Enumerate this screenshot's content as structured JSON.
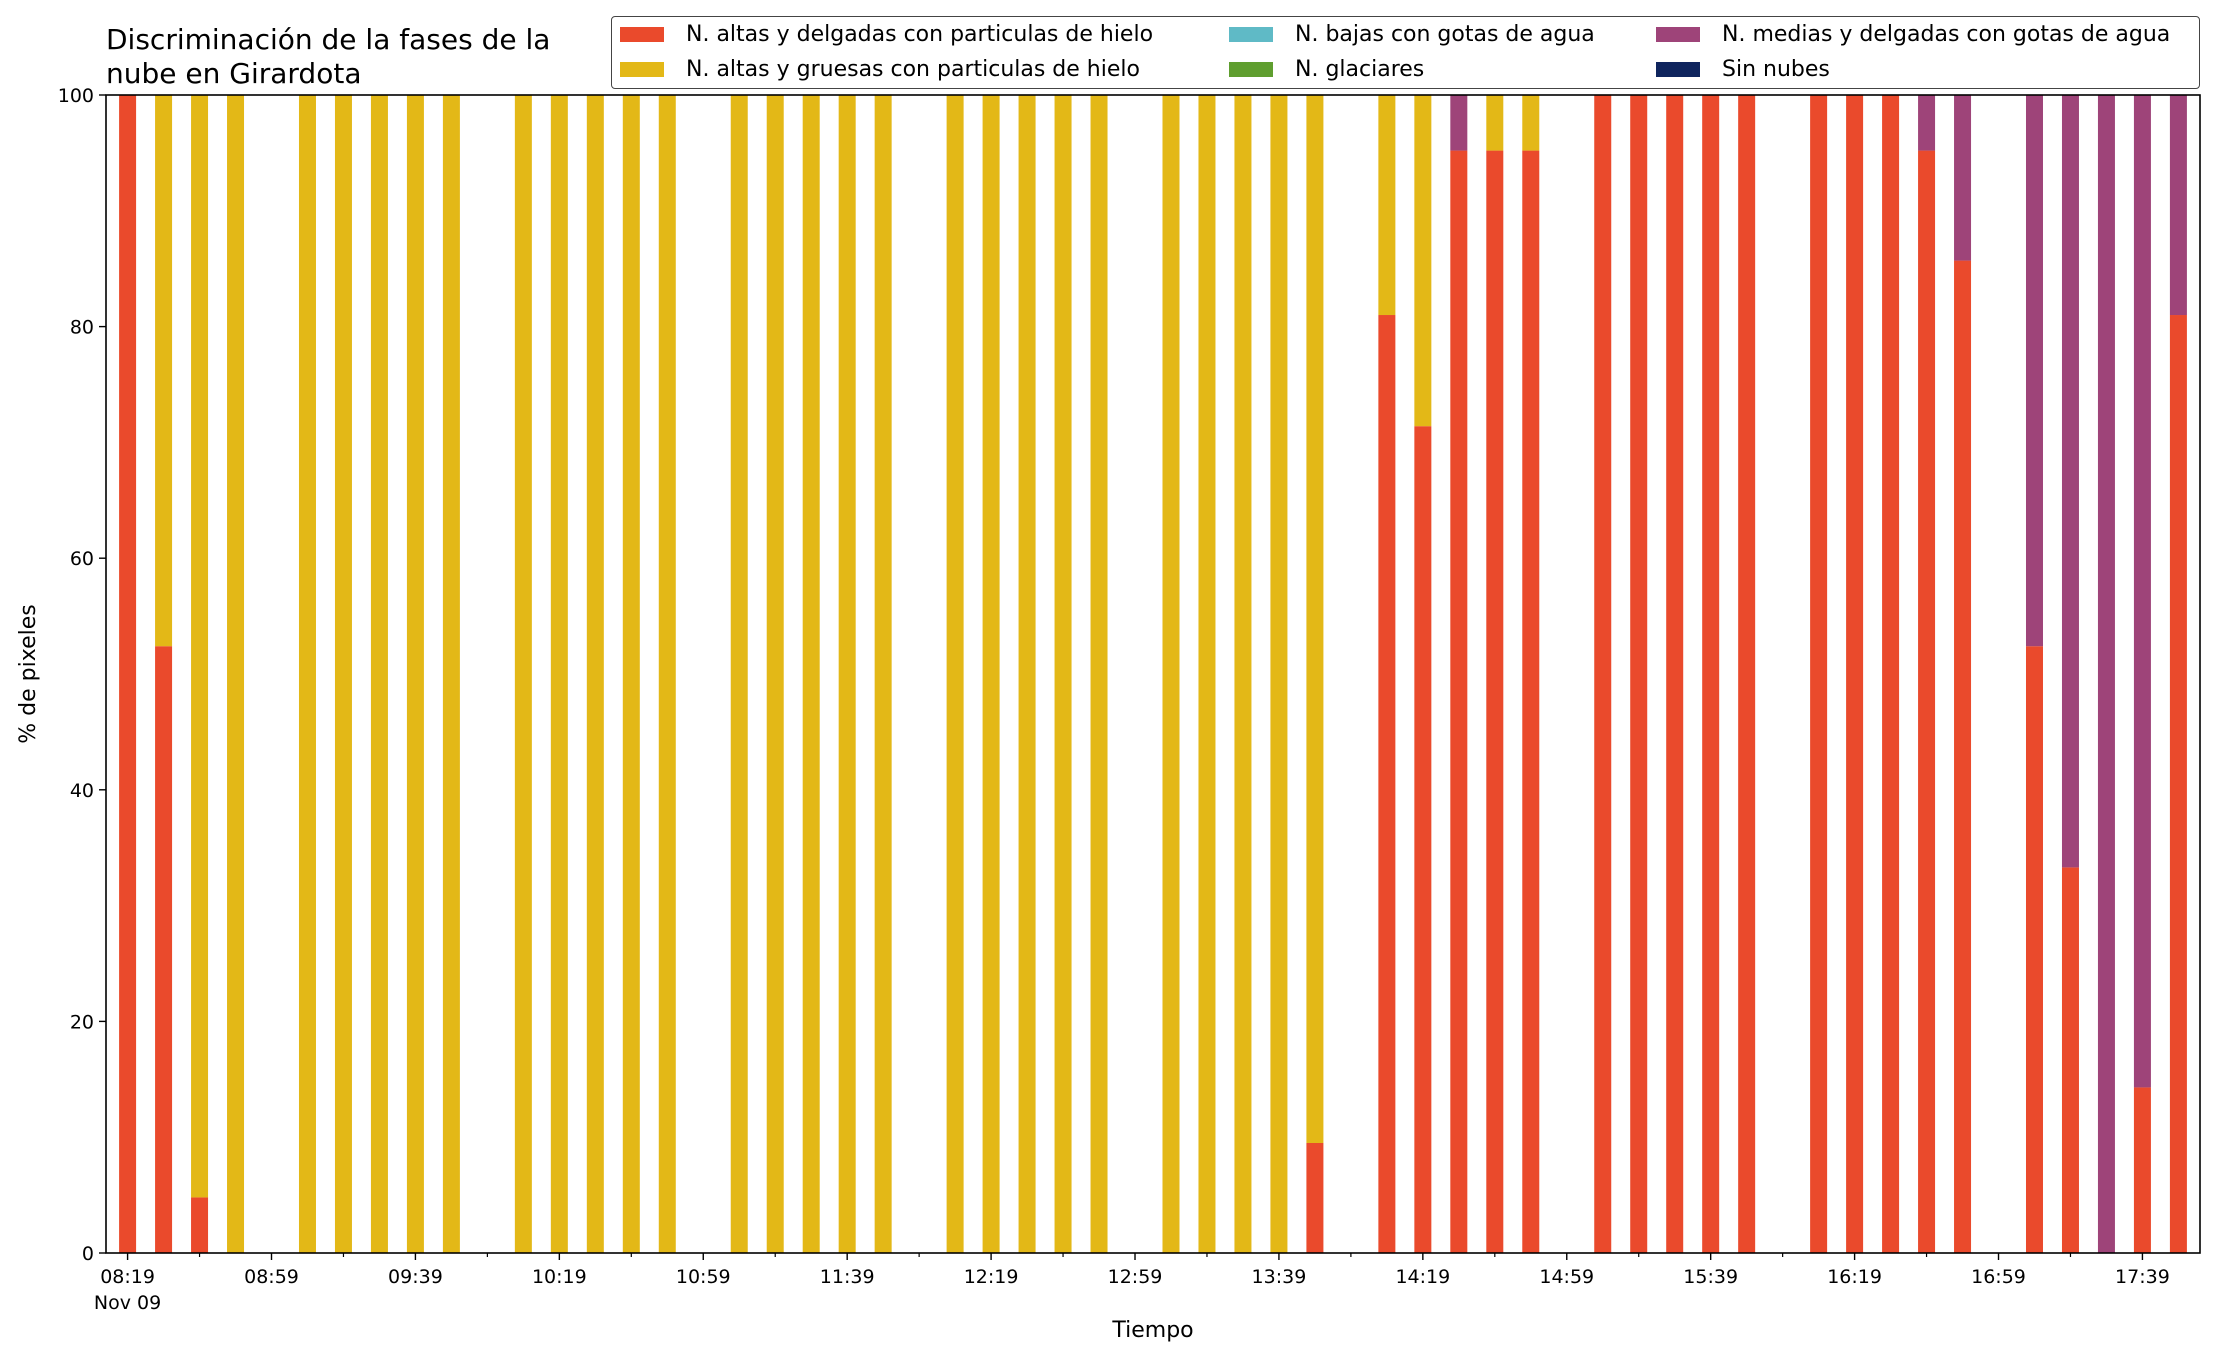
{
  "chart_data": {
    "type": "bar",
    "stacked": true,
    "title": "Discriminación de la fases de la nube en Girardota",
    "title_lines": [
      "Discriminación de la fases de la",
      "nube en Girardota"
    ],
    "xlabel": "Tiempo",
    "ylabel": "% de pixeles",
    "ylim": [
      0,
      100
    ],
    "yticks": [
      0,
      20,
      40,
      60,
      80,
      100
    ],
    "xrange_minutes": [
      "08:13",
      "17:55"
    ],
    "xticks": [
      {
        "time": "08:19",
        "label": "08:19",
        "sublabel": "Nov 09"
      },
      {
        "time": "08:59",
        "label": "08:59"
      },
      {
        "time": "09:39",
        "label": "09:39"
      },
      {
        "time": "10:19",
        "label": "10:19"
      },
      {
        "time": "10:59",
        "label": "10:59"
      },
      {
        "time": "11:39",
        "label": "11:39"
      },
      {
        "time": "12:19",
        "label": "12:19"
      },
      {
        "time": "12:59",
        "label": "12:59"
      },
      {
        "time": "13:39",
        "label": "13:39"
      },
      {
        "time": "14:19",
        "label": "14:19"
      },
      {
        "time": "14:59",
        "label": "14:59"
      },
      {
        "time": "15:39",
        "label": "15:39"
      },
      {
        "time": "16:19",
        "label": "16:19"
      },
      {
        "time": "16:59",
        "label": "16:59"
      },
      {
        "time": "17:39",
        "label": "17:39"
      }
    ],
    "legend_position": "top-right",
    "legend": [
      {
        "name": "N. altas y delgadas con particulas de hielo",
        "color": "#ea4a2c"
      },
      {
        "name": "N. altas y gruesas con particulas de hielo",
        "color": "#e3b817"
      },
      {
        "name": "N. bajas con gotas de agua",
        "color": "#5fbac6"
      },
      {
        "name": "N. glaciares",
        "color": "#5f9e2f"
      },
      {
        "name": "N. medias y delgadas con gotas de agua",
        "color": "#9e4479"
      },
      {
        "name": "Sin nubes",
        "color": "#0f255e"
      }
    ],
    "x": [
      "08:19",
      "08:29",
      "08:39",
      "08:49",
      "09:09",
      "09:19",
      "09:29",
      "09:39",
      "09:49",
      "10:09",
      "10:19",
      "10:29",
      "10:39",
      "10:49",
      "11:09",
      "11:19",
      "11:29",
      "11:39",
      "11:49",
      "12:09",
      "12:19",
      "12:29",
      "12:39",
      "12:49",
      "13:09",
      "13:19",
      "13:29",
      "13:39",
      "13:49",
      "14:09",
      "14:19",
      "14:29",
      "14:39",
      "14:49",
      "15:09",
      "15:19",
      "15:29",
      "15:39",
      "15:49",
      "16:09",
      "16:19",
      "16:29",
      "16:39",
      "16:49",
      "17:09",
      "17:19",
      "17:29",
      "17:39",
      "17:49"
    ],
    "series": [
      {
        "name": "N. altas y delgadas con particulas de hielo",
        "values": [
          100,
          52.4,
          4.8,
          0,
          0,
          0,
          0,
          0,
          0,
          0,
          0,
          0,
          0,
          0,
          0,
          0,
          0,
          0,
          0,
          0,
          0,
          0,
          0,
          0,
          0,
          0,
          0,
          0,
          9.5,
          81,
          71.4,
          95.2,
          95.2,
          95.2,
          100,
          100,
          100,
          100,
          100,
          100,
          100,
          100,
          95.2,
          85.7,
          52.4,
          33.3,
          0,
          14.3,
          81
        ]
      },
      {
        "name": "N. altas y gruesas con particulas de hielo",
        "values": [
          0,
          47.6,
          95.2,
          100,
          100,
          100,
          100,
          100,
          100,
          100,
          100,
          100,
          100,
          100,
          100,
          100,
          100,
          100,
          100,
          100,
          100,
          100,
          100,
          100,
          100,
          100,
          100,
          100,
          90.5,
          19,
          28.6,
          0,
          4.8,
          4.8,
          0,
          0,
          0,
          0,
          0,
          0,
          0,
          0,
          0,
          0,
          0,
          0,
          0,
          0,
          0
        ]
      },
      {
        "name": "N. bajas con gotas de agua",
        "values": [
          0,
          0,
          0,
          0,
          0,
          0,
          0,
          0,
          0,
          0,
          0,
          0,
          0,
          0,
          0,
          0,
          0,
          0,
          0,
          0,
          0,
          0,
          0,
          0,
          0,
          0,
          0,
          0,
          0,
          0,
          0,
          0,
          0,
          0,
          0,
          0,
          0,
          0,
          0,
          0,
          0,
          0,
          0,
          0,
          0,
          0,
          0,
          0,
          0
        ]
      },
      {
        "name": "N. glaciares",
        "values": [
          0,
          0,
          0,
          0,
          0,
          0,
          0,
          0,
          0,
          0,
          0,
          0,
          0,
          0,
          0,
          0,
          0,
          0,
          0,
          0,
          0,
          0,
          0,
          0,
          0,
          0,
          0,
          0,
          0,
          0,
          0,
          0,
          0,
          0,
          0,
          0,
          0,
          0,
          0,
          0,
          0,
          0,
          0,
          0,
          0,
          0,
          0,
          0,
          0
        ]
      },
      {
        "name": "N. medias y delgadas con gotas de agua",
        "values": [
          0,
          0,
          0,
          0,
          0,
          0,
          0,
          0,
          0,
          0,
          0,
          0,
          0,
          0,
          0,
          0,
          0,
          0,
          0,
          0,
          0,
          0,
          0,
          0,
          0,
          0,
          0,
          0,
          0,
          0,
          0,
          4.8,
          0,
          0,
          0,
          0,
          0,
          0,
          0,
          0,
          0,
          0,
          4.8,
          14.3,
          47.6,
          66.7,
          100,
          85.7,
          19
        ]
      },
      {
        "name": "Sin nubes",
        "values": [
          0,
          0,
          0,
          0,
          0,
          0,
          0,
          0,
          0,
          0,
          0,
          0,
          0,
          0,
          0,
          0,
          0,
          0,
          0,
          0,
          0,
          0,
          0,
          0,
          0,
          0,
          0,
          0,
          0,
          0,
          0,
          0,
          0,
          0,
          0,
          0,
          0,
          0,
          0,
          0,
          0,
          0,
          0,
          0,
          0,
          0,
          0,
          0,
          0
        ]
      }
    ]
  }
}
